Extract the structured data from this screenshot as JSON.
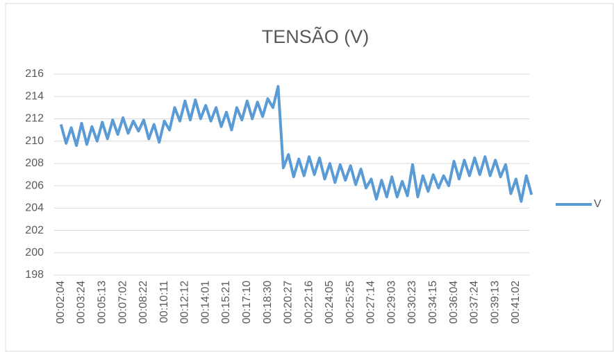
{
  "chart_data": {
    "type": "line",
    "title": "TENSÃO (V)",
    "categories": [
      "00:02:04",
      null,
      null,
      null,
      "00:03:24",
      null,
      null,
      null,
      "00:05:13",
      null,
      null,
      null,
      "00:07:02",
      null,
      null,
      null,
      "00:08:22",
      null,
      null,
      null,
      "00:10:11",
      null,
      null,
      null,
      "00:12:12",
      null,
      null,
      null,
      "00:14:01",
      null,
      null,
      null,
      "00:15:21",
      null,
      null,
      null,
      "00:17:10",
      null,
      null,
      null,
      "00:18:30",
      null,
      null,
      null,
      "00:20:27",
      null,
      null,
      null,
      "00:22:16",
      null,
      null,
      null,
      "00:24:05",
      null,
      null,
      null,
      "00:25:25",
      null,
      null,
      null,
      "00:27:14",
      null,
      null,
      null,
      "00:29:03",
      null,
      null,
      null,
      "00:30:23",
      null,
      null,
      null,
      "00:34:15",
      null,
      null,
      null,
      "00:36:04",
      null,
      null,
      null,
      "00:37:24",
      null,
      null,
      null,
      "00:39:13",
      null,
      null,
      null,
      "00:41:02",
      null,
      null,
      null
    ],
    "series": [
      {
        "name": "V",
        "color": "#5b9bd5",
        "values": [
          211.5,
          209.8,
          211.2,
          209.6,
          211.6,
          209.7,
          211.3,
          210.0,
          211.7,
          210.2,
          211.9,
          210.6,
          212.1,
          210.7,
          211.8,
          210.9,
          211.9,
          210.2,
          211.5,
          209.9,
          211.8,
          211.0,
          213.0,
          211.8,
          213.6,
          211.9,
          213.7,
          212.0,
          213.2,
          211.8,
          213.0,
          211.3,
          212.6,
          211.0,
          213.0,
          211.9,
          213.6,
          212.0,
          213.5,
          212.2,
          213.8,
          213.0,
          214.9,
          207.6,
          208.8,
          206.8,
          208.4,
          206.9,
          208.6,
          207.0,
          208.5,
          206.6,
          208.0,
          206.3,
          207.9,
          206.5,
          207.8,
          206.1,
          207.5,
          205.8,
          206.6,
          204.8,
          206.5,
          205.0,
          206.8,
          205.0,
          206.4,
          205.1,
          207.9,
          205.0,
          206.9,
          205.5,
          207.0,
          205.8,
          206.9,
          206.0,
          208.2,
          206.6,
          208.3,
          206.9,
          208.5,
          207.0,
          208.6,
          206.9,
          208.3,
          206.8,
          207.9,
          205.3,
          206.6,
          204.6,
          206.9,
          205.2
        ]
      }
    ],
    "ylim": [
      198,
      216
    ],
    "yticks": [
      198,
      200,
      202,
      204,
      206,
      208,
      210,
      212,
      214,
      216
    ],
    "grid": true,
    "legend": "right"
  }
}
